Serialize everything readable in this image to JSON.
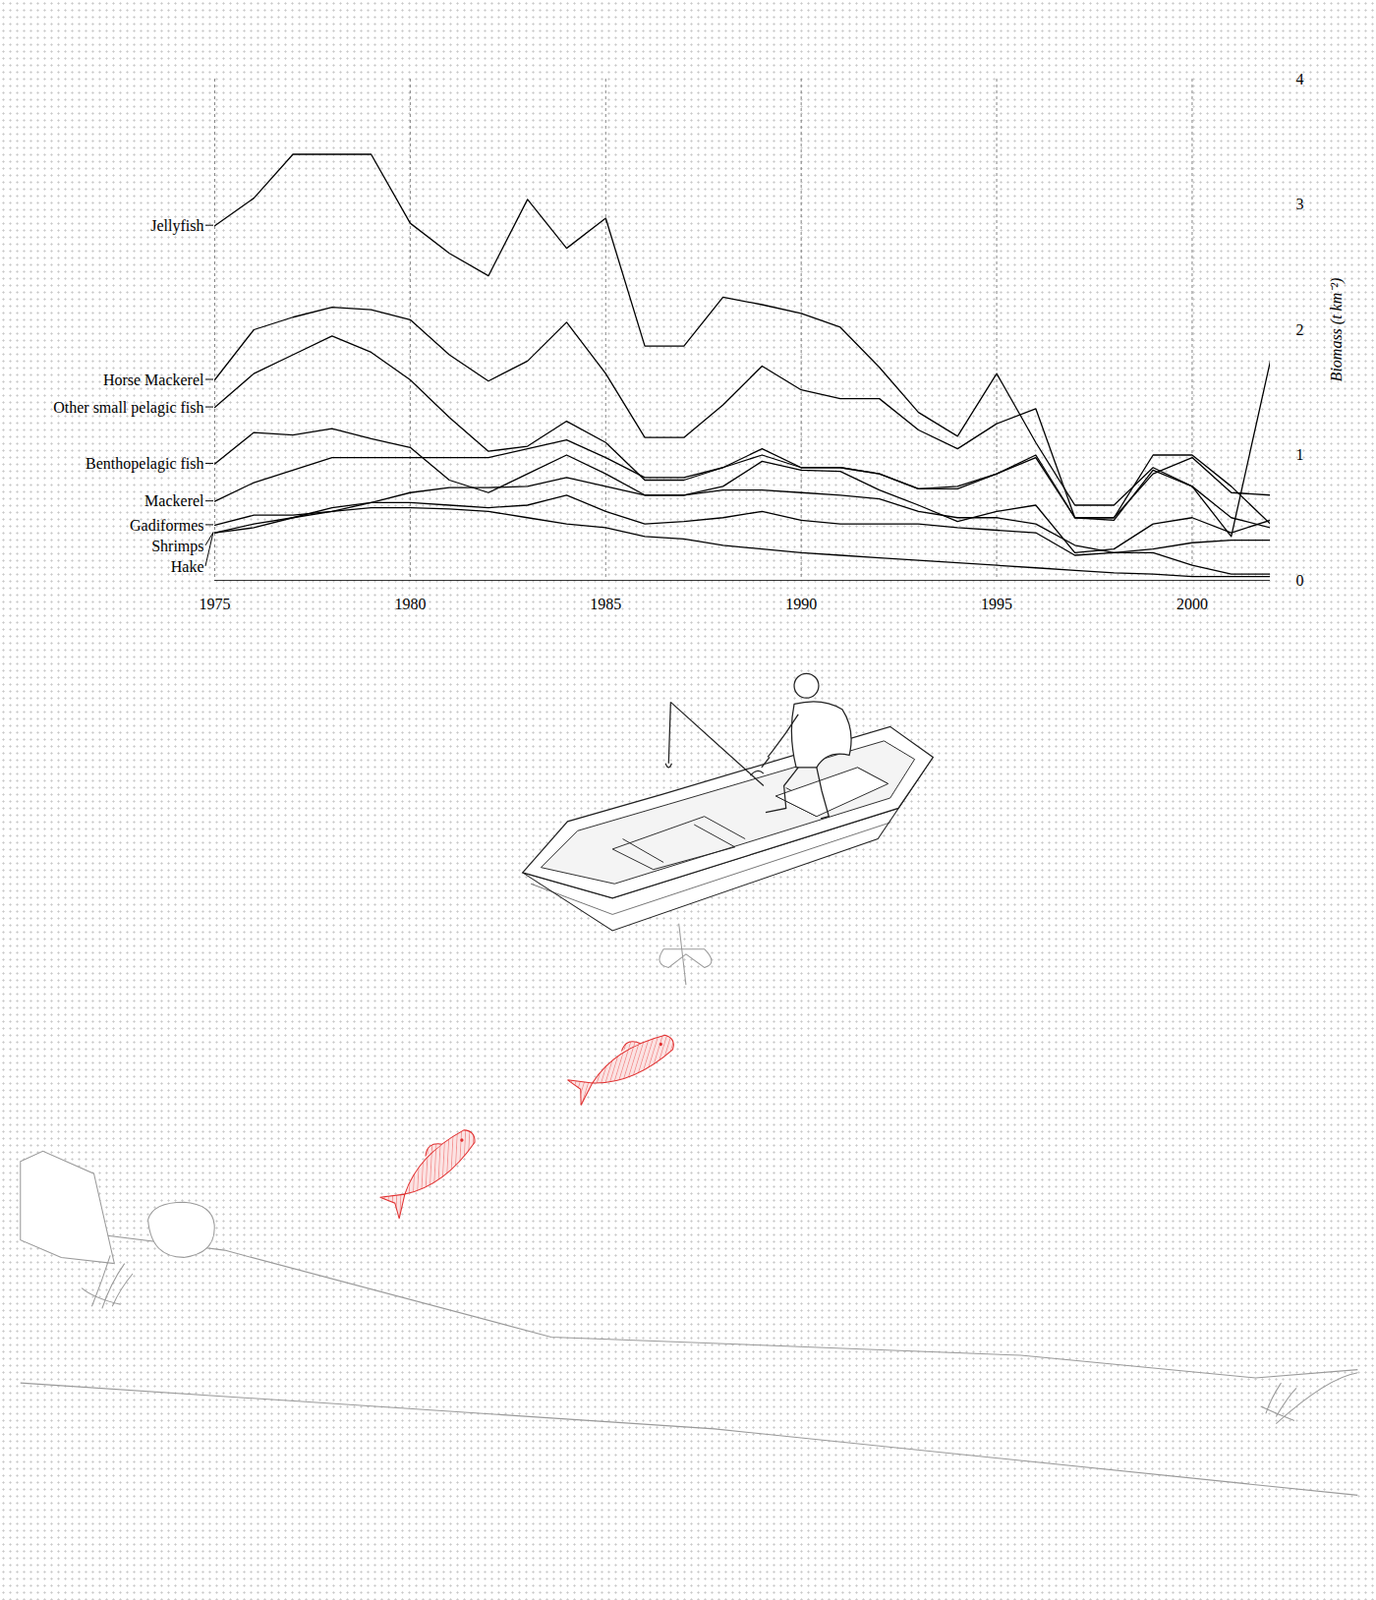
{
  "chart_data": {
    "type": "line",
    "x": [
      1975,
      1976,
      1977,
      1978,
      1979,
      1980,
      1981,
      1982,
      1983,
      1984,
      1985,
      1986,
      1987,
      1988,
      1989,
      1990,
      1991,
      1992,
      1993,
      1994,
      1995,
      1996,
      1997,
      1998,
      1999,
      2000,
      2001,
      2002
    ],
    "series": [
      {
        "name": "Jellyfish",
        "color": "#000000",
        "values": [
          2.83,
          3.05,
          3.4,
          3.4,
          3.4,
          2.85,
          2.61,
          2.43,
          3.04,
          2.65,
          2.89,
          1.87,
          1.87,
          2.26,
          2.2,
          2.13,
          2.02,
          1.7,
          1.34,
          1.15,
          1.65,
          1.1,
          0.6,
          0.6,
          0.9,
          0.75,
          0.35,
          1.75
        ]
      },
      {
        "name": "Horse Mackerel",
        "color": "#000000",
        "values": [
          1.6,
          2.0,
          2.1,
          2.18,
          2.16,
          2.08,
          1.8,
          1.59,
          1.75,
          2.06,
          1.65,
          1.14,
          1.14,
          1.4,
          1.71,
          1.52,
          1.45,
          1.45,
          1.2,
          1.05,
          1.25,
          1.37,
          0.5,
          0.5,
          0.85,
          0.98,
          0.7,
          0.68
        ]
      },
      {
        "name": "Other small pelagic fish",
        "color": "#000000",
        "values": [
          1.38,
          1.65,
          1.8,
          1.95,
          1.82,
          1.6,
          1.3,
          1.03,
          1.07,
          1.27,
          1.1,
          0.8,
          0.8,
          0.9,
          1.05,
          0.9,
          0.9,
          0.85,
          0.73,
          0.73,
          0.85,
          1.0,
          0.5,
          0.5,
          1.0,
          1.0,
          0.75,
          0.45
        ]
      },
      {
        "name": "Benthopelagic fish",
        "color": "#000000",
        "values": [
          0.93,
          1.18,
          1.16,
          1.21,
          1.13,
          1.06,
          0.8,
          0.7,
          0.85,
          1.0,
          0.85,
          0.68,
          0.68,
          0.75,
          0.95,
          0.88,
          0.87,
          0.72,
          0.6,
          0.47,
          0.55,
          0.6,
          0.22,
          0.25,
          0.45,
          0.5,
          0.38,
          0.48
        ]
      },
      {
        "name": "Mackerel",
        "color": "#000000",
        "values": [
          0.63,
          0.78,
          0.88,
          0.98,
          0.98,
          0.98,
          0.98,
          0.98,
          1.05,
          1.12,
          0.98,
          0.82,
          0.82,
          0.9,
          1.0,
          0.9,
          0.9,
          0.85,
          0.73,
          0.75,
          0.85,
          0.98,
          0.5,
          0.48,
          0.88,
          0.75,
          0.5,
          0.42
        ]
      },
      {
        "name": "Gadiformes",
        "color": "#000000",
        "values": [
          0.44,
          0.52,
          0.52,
          0.55,
          0.62,
          0.7,
          0.74,
          0.74,
          0.75,
          0.82,
          0.75,
          0.68,
          0.68,
          0.72,
          0.72,
          0.7,
          0.68,
          0.65,
          0.55,
          0.5,
          0.5,
          0.45,
          0.28,
          0.22,
          0.25,
          0.3,
          0.32,
          0.32
        ]
      },
      {
        "name": "Shrimps",
        "color": "#000000",
        "values": [
          0.38,
          0.42,
          0.5,
          0.58,
          0.62,
          0.62,
          0.6,
          0.58,
          0.6,
          0.68,
          0.55,
          0.45,
          0.47,
          0.5,
          0.55,
          0.48,
          0.45,
          0.45,
          0.45,
          0.42,
          0.4,
          0.38,
          0.2,
          0.22,
          0.22,
          0.12,
          0.05,
          0.05
        ]
      },
      {
        "name": "Hake",
        "color": "#000000",
        "values": [
          0.38,
          0.45,
          0.5,
          0.55,
          0.58,
          0.58,
          0.57,
          0.55,
          0.5,
          0.45,
          0.42,
          0.35,
          0.33,
          0.28,
          0.25,
          0.22,
          0.2,
          0.18,
          0.16,
          0.14,
          0.12,
          0.1,
          0.08,
          0.06,
          0.05,
          0.03,
          0.03,
          0.03
        ]
      }
    ],
    "y_label": "Biomass (t km⁻²)",
    "xlim": [
      1975,
      2002
    ],
    "xticks": [
      1975,
      1980,
      1985,
      1990,
      1995,
      2000
    ],
    "ylim": [
      0,
      4
    ],
    "yticks": [
      0,
      1,
      2,
      3,
      4
    ],
    "grid": true
  }
}
